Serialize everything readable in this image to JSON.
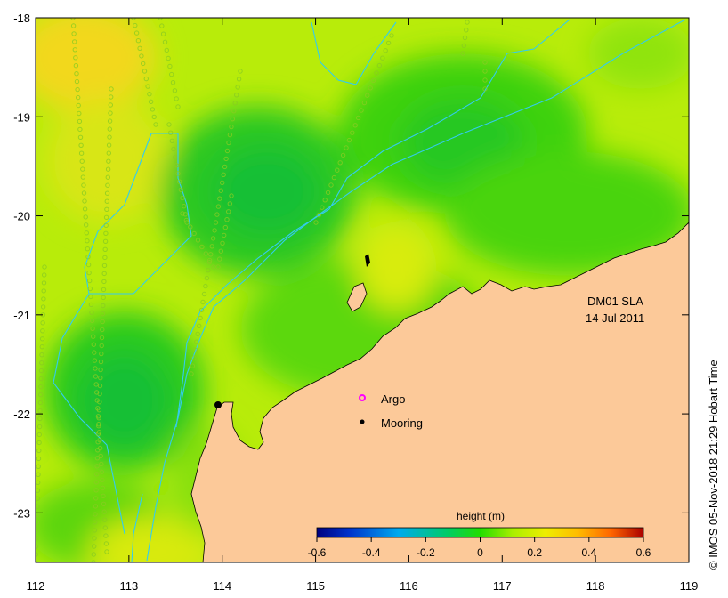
{
  "map": {
    "title_line1": "DM01 SLA",
    "title_line2": "14 Jul 2011",
    "lon_range": [
      112,
      119
    ],
    "lat_range": [
      -23.5,
      -18
    ],
    "x_ticks": [
      "112",
      "113",
      "114",
      "115",
      "116",
      "117",
      "118",
      "119"
    ],
    "y_ticks": [
      "-18",
      "-19",
      "-20",
      "-21",
      "-22",
      "-23"
    ]
  },
  "legend": {
    "argo_label": "Argo",
    "mooring_label": "Mooring",
    "argo_color": "#ff00ff",
    "mooring_color": "#000000"
  },
  "colorbar": {
    "title": "height (m)",
    "ticks": [
      "-0.6",
      "-0.4",
      "-0.2",
      "0",
      "0.2",
      "0.4",
      "0.6"
    ],
    "colors": [
      "#000080",
      "#0033cc",
      "#0088ee",
      "#00ccee",
      "#00cc66",
      "#22dd00",
      "#aaee00",
      "#eeee00",
      "#ffcc00",
      "#ff8800",
      "#ee3300",
      "#aa0000"
    ]
  },
  "copyright": "© IMOS 05-Nov-2018 21:29 Hobart Time",
  "colors": {
    "land": "#fcc999",
    "ocean_base": "#b8ec0a",
    "ocean_green": "#3cd208",
    "ocean_dark": "#18c830",
    "ocean_yellow": "#f2e51a",
    "isobath": "#33ccee"
  }
}
